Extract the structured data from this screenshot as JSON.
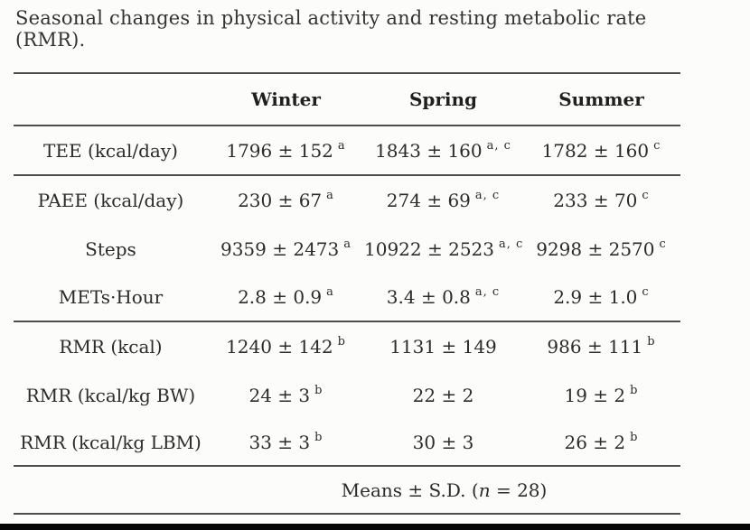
{
  "title": "Seasonal changes in physical activity and resting metabolic rate (RMR).",
  "table": {
    "columns": [
      "Winter",
      "Spring",
      "Summer"
    ],
    "rows": [
      {
        "label": "TEE (kcal/day)",
        "cells": [
          {
            "value": "1796 ± 152",
            "sup": "a"
          },
          {
            "value": "1843 ± 160",
            "sup": "a, c"
          },
          {
            "value": "1782 ± 160",
            "sup": "c"
          }
        ],
        "rule_after": true
      },
      {
        "label": "PAEE (kcal/day)",
        "cells": [
          {
            "value": "230 ± 67",
            "sup": "a"
          },
          {
            "value": "274 ± 69",
            "sup": "a, c"
          },
          {
            "value": "233 ± 70",
            "sup": "c"
          }
        ],
        "rule_after": false
      },
      {
        "label": "Steps",
        "cells": [
          {
            "value": "9359 ± 2473",
            "sup": "a"
          },
          {
            "value": "10922 ± 2523",
            "sup": "a, c"
          },
          {
            "value": "9298 ± 2570",
            "sup": "c"
          }
        ],
        "rule_after": false
      },
      {
        "label": "METs·Hour",
        "cells": [
          {
            "value": "2.8 ± 0.9",
            "sup": "a"
          },
          {
            "value": "3.4 ± 0.8",
            "sup": "a, c"
          },
          {
            "value": "2.9 ± 1.0",
            "sup": "c"
          }
        ],
        "rule_after": true
      },
      {
        "label": "RMR (kcal)",
        "cells": [
          {
            "value": "1240 ± 142",
            "sup": "b"
          },
          {
            "value": "1131 ± 149",
            "sup": ""
          },
          {
            "value": "986 ± 111",
            "sup": "b"
          }
        ],
        "rule_after": false
      },
      {
        "label": "RMR (kcal/kg BW)",
        "cells": [
          {
            "value": "24 ± 3",
            "sup": "b"
          },
          {
            "value": "22 ± 2",
            "sup": ""
          },
          {
            "value": "19 ± 2",
            "sup": "b"
          }
        ],
        "rule_after": false
      },
      {
        "label": "RMR (kcal/kg LBM)",
        "cells": [
          {
            "value": "33 ± 3",
            "sup": "b"
          },
          {
            "value": "30 ± 3",
            "sup": ""
          },
          {
            "value": "26 ± 2",
            "sup": "b"
          }
        ],
        "rule_after": true
      }
    ],
    "footer": {
      "prefix": "Means ± S.D. (",
      "n_label": "n",
      "suffix": " = 28)"
    }
  },
  "colors": {
    "background": "#fcfcfa",
    "text": "#2b2b2b",
    "rule": "#4d4d4d",
    "bottom_bar": "#060606"
  }
}
